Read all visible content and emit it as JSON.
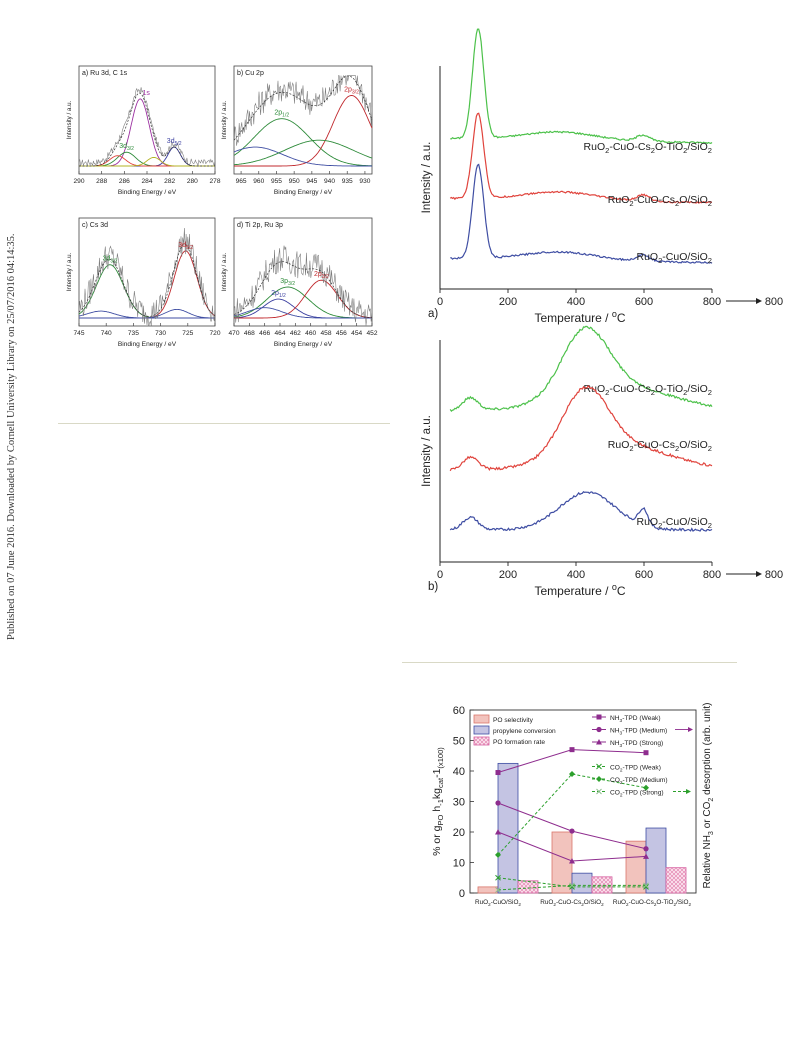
{
  "side_note": "Published on 07 June 2016. Downloaded by Cornell University Library on 25/07/2016 04:14:35.",
  "colors": {
    "green": "#4cc14a",
    "red": "#e0443d",
    "blue": "#3f4ea3",
    "purple": "#8e2d8e",
    "olive": "#b3b324",
    "navy": "#2c2c9c",
    "pink_fill": "#f2c3bd",
    "lav_fill": "#c4c4e3",
    "grid_rule": "#d9d9c6"
  },
  "chart_data": [
    {
      "id": "xps_a",
      "type": "line",
      "title": "a) Ru 3d, C 1s",
      "xlabel": "Binding Energy / eV",
      "ylabel": "Intensity / a.u.",
      "xlim": [
        290,
        278
      ],
      "xticks": [
        290,
        288,
        286,
        284,
        282,
        280,
        278
      ],
      "peaks": [
        {
          "label_main": "1s",
          "label_sub": "",
          "center": 284.6,
          "color": "#9b2fa0",
          "text_class": "t-purple"
        },
        {
          "label_main": "3d",
          "label_sub": "3/2",
          "center": 285.8,
          "color": "#2e8b3a",
          "text_class": "t-green"
        },
        {
          "label_main": "3d",
          "label_sub": "5/2",
          "center": 281.6,
          "color": "#3b3fa0",
          "text_class": "t-blue"
        }
      ]
    },
    {
      "id": "xps_b",
      "type": "line",
      "title": "b) Cu 2p",
      "xlabel": "Binding Energy / eV",
      "ylabel": "Intensity / a.u.",
      "xlim": [
        967,
        928
      ],
      "xticks": [
        965,
        960,
        955,
        950,
        945,
        940,
        935,
        930
      ],
      "peaks": [
        {
          "label_main": "2p",
          "label_sub": "1/2",
          "center": 953.5,
          "color": "#2e8b3a",
          "text_class": "t-green"
        },
        {
          "label_main": "2p",
          "label_sub": "3/2",
          "center": 933.8,
          "color": "#c0282d",
          "text_class": "t-red"
        }
      ]
    },
    {
      "id": "xps_c",
      "type": "line",
      "title": "c) Cs 3d",
      "xlabel": "Binding Energy / eV",
      "ylabel": "Intensity / a.u.",
      "xlim": [
        745,
        720
      ],
      "xticks": [
        745,
        740,
        735,
        730,
        725,
        720
      ],
      "peaks": [
        {
          "label_main": "3d",
          "label_sub": "3/2",
          "center": 739.3,
          "color": "#2e8b3a",
          "text_class": "t-green"
        },
        {
          "label_main": "3d",
          "label_sub": "5/2",
          "center": 725.4,
          "color": "#c0282d",
          "text_class": "t-red"
        }
      ]
    },
    {
      "id": "xps_d",
      "type": "line",
      "title": "d) Ti 2p, Ru 3p",
      "xlabel": "Binding Energy / eV",
      "ylabel": "Intensity / a.u.",
      "xlim": [
        470,
        452
      ],
      "xticks": [
        470,
        468,
        466,
        464,
        462,
        460,
        458,
        456,
        454,
        452
      ],
      "peaks": [
        {
          "label_main": "3p",
          "label_sub": "3/2",
          "center": 463.0,
          "color": "#2e8b3a",
          "text_class": "t-green"
        },
        {
          "label_main": "2p",
          "label_sub": "1/2",
          "center": 464.2,
          "color": "#3b3fa0",
          "text_class": "t-blue"
        },
        {
          "label_main": "2p",
          "label_sub": "3/2",
          "center": 458.6,
          "color": "#c0282d",
          "text_class": "t-red"
        }
      ]
    },
    {
      "id": "tpd_a",
      "type": "line",
      "panel_label": "a)",
      "xlabel_main": "Temperature / ",
      "xlabel_unit": "C",
      "ylabel": "Intensity / a.u.",
      "xlim": [
        0,
        800
      ],
      "xticks": [
        0,
        200,
        400,
        600,
        800
      ],
      "arrow_label": "800",
      "series": [
        {
          "name_parts": [
            "RuO",
            "2",
            "-CuO-Cs",
            "2",
            "O-TiO",
            "2",
            "/SiO",
            "2"
          ],
          "color": "#4cc14a",
          "offset": 2
        },
        {
          "name_parts": [
            "RuO",
            "2",
            "-CuO-Cs",
            "2",
            "O/SiO",
            "2"
          ],
          "color": "#e0443d",
          "offset": 1
        },
        {
          "name_parts": [
            "RuO",
            "2",
            "-CuO/SiO",
            "2"
          ],
          "color": "#3f4ea3",
          "offset": 0
        }
      ]
    },
    {
      "id": "tpd_b",
      "type": "line",
      "panel_label": "b)",
      "xlabel_main": "Temperature / ",
      "xlabel_unit": "C",
      "ylabel": "Intensity / a.u.",
      "xlim": [
        0,
        800
      ],
      "xticks": [
        0,
        200,
        400,
        600,
        800
      ],
      "arrow_label": "800",
      "series": [
        {
          "name_parts": [
            "RuO",
            "2",
            "-CuO-Cs",
            "2",
            "O-TiO",
            "2",
            "/SiO",
            "2"
          ],
          "color": "#4cc14a",
          "offset": 2
        },
        {
          "name_parts": [
            "RuO",
            "2",
            "-CuO-Cs",
            "2",
            "O/SiO",
            "2"
          ],
          "color": "#e0443d",
          "offset": 1
        },
        {
          "name_parts": [
            "RuO",
            "2",
            "-CuO/SiO",
            "2"
          ],
          "color": "#3f4ea3",
          "offset": 0
        }
      ]
    },
    {
      "id": "catalysis",
      "type": "bar",
      "ylabel_left_parts": [
        "% or g",
        "PO",
        " h",
        "-1",
        "kg",
        "cat",
        "-1",
        "(x100)"
      ],
      "ylabel_right_parts": [
        "Relative NH",
        "3",
        " or CO",
        "2",
        " desorption (arb. unit)"
      ],
      "ylim": [
        0,
        60
      ],
      "yticks": [
        0,
        10,
        20,
        30,
        40,
        50,
        60
      ],
      "categories": [
        {
          "parts": [
            "RuO",
            "2",
            "-CuO/SiO",
            "2"
          ]
        },
        {
          "parts": [
            "RuO",
            "2",
            "-CuO-Cs",
            "2",
            "O/SiO",
            "2"
          ]
        },
        {
          "parts": [
            "RuO",
            "2",
            "-CuO-Cs",
            "2",
            "O-TiO",
            "2",
            "/SiO",
            "2"
          ]
        }
      ],
      "bars": [
        {
          "name": "PO selectivity",
          "values": [
            2,
            20,
            17
          ]
        },
        {
          "name": "propylene conversion",
          "values": [
            42.5,
            6.5,
            21.3
          ]
        },
        {
          "name": "PO formation rate",
          "values": [
            4,
            5.3,
            8.3
          ]
        }
      ],
      "lines": [
        {
          "name_parts": [
            "NH",
            "3",
            "-TPD (Weak)"
          ],
          "values": [
            39.5,
            47,
            46
          ],
          "color": "#8e2d8e",
          "marker": "square",
          "dash": false
        },
        {
          "name_parts": [
            "NH",
            "3",
            "-TPD (Medium)"
          ],
          "values": [
            29.5,
            20.3,
            14.5
          ],
          "color": "#8e2d8e",
          "marker": "circle",
          "dash": false
        },
        {
          "name_parts": [
            "NH",
            "3",
            "-TPD (Strong)"
          ],
          "values": [
            20,
            10.5,
            12
          ],
          "color": "#8e2d8e",
          "marker": "triangle",
          "dash": false
        },
        {
          "name_parts": [
            "CO",
            "2",
            "-TPD (Weak)"
          ],
          "values": [
            5,
            2,
            2
          ],
          "color": "#2ca02c",
          "marker": "x",
          "dash": true
        },
        {
          "name_parts": [
            "CO",
            "2",
            "-TPD (Medium)"
          ],
          "values": [
            12.5,
            39,
            34.5
          ],
          "color": "#2ca02c",
          "marker": "diamond",
          "dash": true
        },
        {
          "name_parts": [
            "CO",
            "2",
            "-TPD (Strong)"
          ],
          "values": [
            1,
            2.5,
            2.5
          ],
          "color": "#2ca02c",
          "marker": "xcross",
          "dash": true
        }
      ]
    }
  ]
}
